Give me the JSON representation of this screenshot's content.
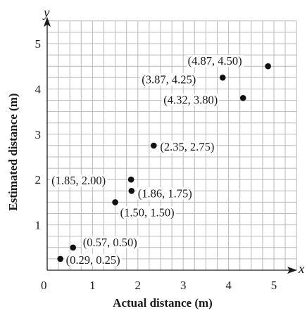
{
  "chart_data": {
    "type": "scatter",
    "xlabel": "Actual distance (m)",
    "ylabel": "Estimated distance (m)",
    "x_axis_letter": "x",
    "y_axis_letter": "y",
    "origin_label": "0",
    "xlim": [
      0,
      5.5
    ],
    "ylim": [
      0,
      5.5
    ],
    "grid_step": 0.25,
    "grid": true,
    "x_ticks": [
      "1",
      "2",
      "3",
      "4",
      "5"
    ],
    "y_ticks": [
      "1",
      "2",
      "3",
      "4",
      "5"
    ],
    "points": [
      {
        "x": 0.29,
        "y": 0.25,
        "label": "(0.29, 0.25)"
      },
      {
        "x": 0.57,
        "y": 0.5,
        "label": "(0.57, 0.50)"
      },
      {
        "x": 1.5,
        "y": 1.5,
        "label": "(1.50, 1.50)"
      },
      {
        "x": 1.86,
        "y": 1.75,
        "label": "(1.86, 1.75)"
      },
      {
        "x": 1.85,
        "y": 2.0,
        "label": "(1.85, 2.00)"
      },
      {
        "x": 2.35,
        "y": 2.75,
        "label": "(2.35, 2.75)"
      },
      {
        "x": 4.32,
        "y": 3.8,
        "label": "(4.32, 3.80)"
      },
      {
        "x": 3.87,
        "y": 4.25,
        "label": "(3.87, 4.25)"
      },
      {
        "x": 4.87,
        "y": 4.5,
        "label": "(4.87, 4.50)"
      }
    ]
  }
}
